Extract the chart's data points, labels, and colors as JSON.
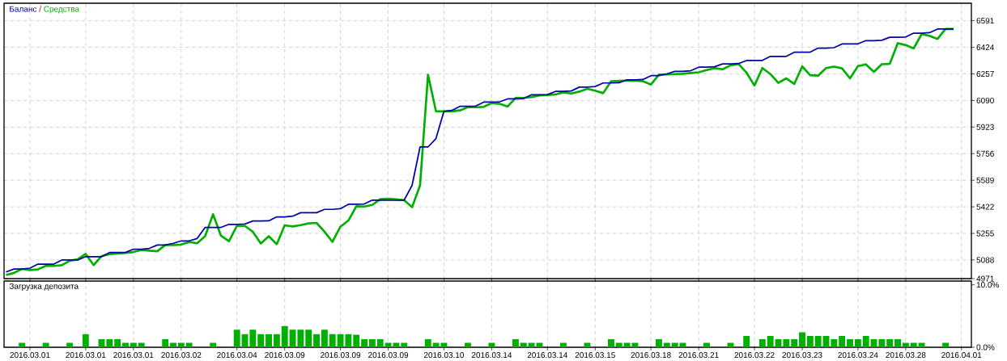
{
  "chart_data": [
    {
      "type": "line",
      "legend": "top left",
      "grid": true,
      "tick_labels": "y",
      "annotations": [
        "/"
      ],
      "categories": [
        null,
        null,
        null,
        "2016.03.01",
        null,
        null,
        null,
        null,
        null,
        null,
        "2016.03.01",
        null,
        null,
        null,
        null,
        null,
        "2016.03.01",
        null,
        null,
        null,
        null,
        null,
        "2016.03.02",
        null,
        null,
        null,
        null,
        null,
        null,
        "2016.03.04",
        null,
        null,
        null,
        null,
        null,
        "2016.03.09",
        null,
        null,
        null,
        null,
        null,
        null,
        "2016.03.09",
        null,
        null,
        null,
        null,
        null,
        "2016.03.09",
        null,
        null,
        null,
        null,
        null,
        null,
        "2016.03.10",
        null,
        null,
        null,
        null,
        null,
        "2016.03.14",
        null,
        null,
        null,
        null,
        null,
        null,
        "2016.03.14",
        null,
        null,
        null,
        null,
        null,
        "2016.03.15",
        null,
        null,
        null,
        null,
        null,
        null,
        "2016.03.18",
        null,
        null,
        null,
        null,
        null,
        "2016.03.21",
        null,
        null,
        null,
        null,
        null,
        null,
        "2016.03.22",
        null,
        null,
        null,
        null,
        null,
        "2016.03.23",
        null,
        null,
        null,
        null,
        null,
        null,
        "2016.03.24",
        null,
        null,
        null,
        null,
        null,
        "2016.03.28",
        null,
        null,
        null,
        null,
        null,
        null,
        "2016.04.01",
        null
      ],
      "ylim": [
        4971,
        6701
      ],
      "yticks": [
        4971,
        5088,
        5255,
        5422,
        5589,
        5756,
        5923,
        6090,
        6257,
        6424,
        6591
      ],
      "series": [
        {
          "name": "Баланс",
          "color": "#0000a8",
          "values": [
            5013,
            5031,
            5031,
            5037,
            5062,
            5062,
            5062,
            5088,
            5088,
            5088,
            5109,
            5109,
            5109,
            5135,
            5135,
            5135,
            5156,
            5156,
            5161,
            5182,
            5182,
            5193,
            5208,
            5208,
            5223,
            5292,
            5292,
            5293,
            5312,
            5312,
            5314,
            5333,
            5333,
            5334,
            5359,
            5359,
            5363,
            5385,
            5385,
            5385,
            5406,
            5406,
            5410,
            5438,
            5438,
            5440,
            5464,
            5464,
            5464,
            5464,
            5464,
            5557,
            5798,
            5798,
            5851,
            6022,
            6028,
            6053,
            6053,
            6055,
            6080,
            6080,
            6082,
            6100,
            6100,
            6102,
            6126,
            6126,
            6127,
            6147,
            6147,
            6150,
            6174,
            6174,
            6178,
            6200,
            6200,
            6202,
            6220,
            6220,
            6222,
            6246,
            6246,
            6257,
            6273,
            6273,
            6277,
            6299,
            6299,
            6302,
            6320,
            6320,
            6322,
            6341,
            6341,
            6342,
            6367,
            6367,
            6367,
            6393,
            6393,
            6394,
            6419,
            6419,
            6422,
            6445,
            6445,
            6446,
            6466,
            6466,
            6468,
            6487,
            6487,
            6489,
            6513,
            6513,
            6516,
            6539,
            6539,
            6539,
            null,
            null
          ]
        },
        {
          "name": "Средства",
          "color": "#00b000",
          "values": [
            4994,
            5007,
            5032,
            5025,
            5029,
            5051,
            5051,
            5055,
            5083,
            5092,
            5126,
            5056,
            5112,
            5125,
            5129,
            5132,
            5138,
            5151,
            5147,
            5143,
            5182,
            5182,
            5185,
            5201,
            5193,
            5237,
            5375,
            5240,
            5206,
            5302,
            5302,
            5265,
            5192,
            5237,
            5187,
            5306,
            5299,
            5307,
            5318,
            5321,
            5266,
            5202,
            5297,
            5336,
            5426,
            5424,
            5434,
            5470,
            5473,
            5469,
            5464,
            5420,
            5557,
            6252,
            6022,
            6022,
            6022,
            6028,
            6048,
            6048,
            6050,
            6074,
            6069,
            6052,
            6106,
            6106,
            6112,
            6122,
            6124,
            6128,
            6141,
            6134,
            6146,
            6163,
            6152,
            6136,
            6211,
            6213,
            6215,
            6215,
            6211,
            6190,
            6253,
            6254,
            6256,
            6258,
            6263,
            6267,
            6281,
            6293,
            6286,
            6311,
            6320,
            6265,
            6184,
            6294,
            6256,
            6201,
            6229,
            6194,
            6304,
            6249,
            6246,
            6294,
            6303,
            6292,
            6229,
            6306,
            6317,
            6270,
            6318,
            6320,
            6450,
            6438,
            6417,
            6507,
            6496,
            6477,
            6539,
            6539,
            null,
            null
          ]
        }
      ]
    },
    {
      "type": "bar",
      "title": "Загрузка депозита",
      "color": "#00b000",
      "grid": "x",
      "categories": [
        null,
        null,
        null,
        "2016.03.01",
        null,
        null,
        null,
        null,
        null,
        null,
        "2016.03.01",
        null,
        null,
        null,
        null,
        null,
        "2016.03.01",
        null,
        null,
        null,
        null,
        null,
        "2016.03.02",
        null,
        null,
        null,
        null,
        null,
        null,
        "2016.03.04",
        null,
        null,
        null,
        null,
        null,
        "2016.03.09",
        null,
        null,
        null,
        null,
        null,
        null,
        "2016.03.09",
        null,
        null,
        null,
        null,
        null,
        "2016.03.09",
        null,
        null,
        null,
        null,
        null,
        null,
        "2016.03.10",
        null,
        null,
        null,
        null,
        null,
        "2016.03.14",
        null,
        null,
        null,
        null,
        null,
        null,
        "2016.03.14",
        null,
        null,
        null,
        null,
        null,
        "2016.03.15",
        null,
        null,
        null,
        null,
        null,
        null,
        "2016.03.18",
        null,
        null,
        null,
        null,
        null,
        "2016.03.21",
        null,
        null,
        null,
        null,
        null,
        null,
        "2016.03.22",
        null,
        null,
        null,
        null,
        null,
        "2016.03.23",
        null,
        null,
        null,
        null,
        null,
        null,
        "2016.03.24",
        null,
        null,
        null,
        null,
        null,
        "2016.03.28",
        null,
        null,
        null,
        null,
        null,
        null,
        "2016.04.01",
        null
      ],
      "ylim": [
        0,
        10.6
      ],
      "yticks": [
        {
          "value": 0,
          "label": "0.0%"
        },
        {
          "value": 10,
          "label": "10.0%"
        }
      ],
      "values": [
        null,
        null,
        0.7,
        null,
        null,
        0.7,
        null,
        null,
        0.7,
        null,
        2.1,
        null,
        1.3,
        1.3,
        1.3,
        0.7,
        0.7,
        0.7,
        null,
        null,
        1.3,
        0.7,
        0.7,
        0.7,
        null,
        null,
        0.7,
        null,
        null,
        2.8,
        2.1,
        2.8,
        2.1,
        2.1,
        2.1,
        3.4,
        2.8,
        2.8,
        2.8,
        2.1,
        2.8,
        2.1,
        2.1,
        2.1,
        2.0,
        1.3,
        1.3,
        1.3,
        0.7,
        0.7,
        0.7,
        null,
        null,
        1.3,
        0.7,
        0.7,
        null,
        null,
        0.7,
        null,
        null,
        0.7,
        null,
        null,
        1.3,
        0.7,
        0.7,
        0.7,
        null,
        null,
        0.7,
        null,
        null,
        0.7,
        null,
        null,
        1.3,
        0.7,
        0.7,
        0.7,
        null,
        null,
        1.3,
        0.7,
        0.7,
        0.7,
        null,
        null,
        0.7,
        null,
        null,
        0.7,
        null,
        1.8,
        null,
        1.3,
        1.8,
        1.3,
        1.3,
        1.3,
        2.4,
        1.8,
        1.8,
        1.8,
        1.3,
        1.8,
        1.3,
        1.3,
        1.8,
        1.3,
        1.3,
        1.3,
        1.3,
        0.7,
        0.7,
        0.7,
        null,
        null,
        0.7,
        null,
        null,
        null
      ]
    }
  ]
}
